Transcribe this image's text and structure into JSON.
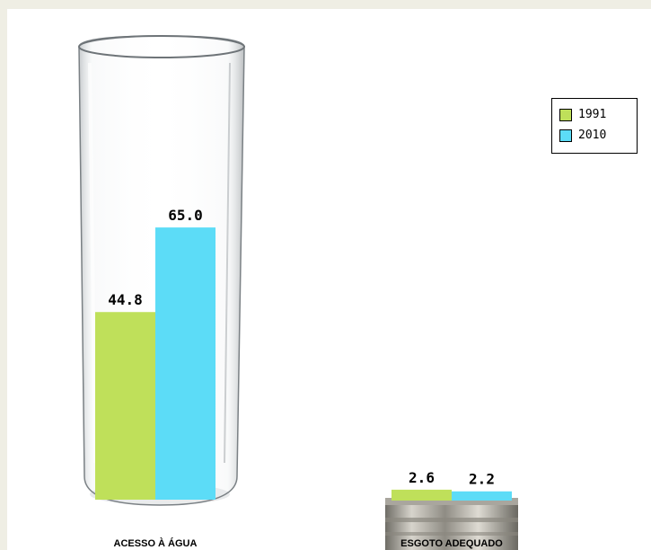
{
  "colors": {
    "c1991": "#bfe05a",
    "c2010": "#5cdcf7"
  },
  "chart_data": {
    "type": "bar",
    "categories": [
      "ACESSO À ÁGUA",
      "ESGOTO ADEQUADO"
    ],
    "series": [
      {
        "name": "1991",
        "values": [
          44.8,
          2.6
        ],
        "labels": [
          "44.8",
          "2.6"
        ]
      },
      {
        "name": "2010",
        "values": [
          65.0,
          2.2
        ],
        "labels": [
          "65.0",
          "2.2"
        ]
      }
    ],
    "legend_position": "top-right",
    "grid": false
  }
}
